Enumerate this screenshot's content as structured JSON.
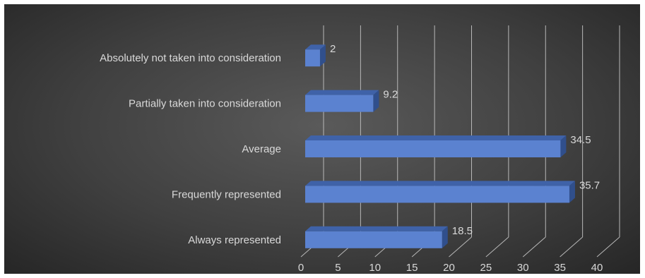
{
  "chart_data": {
    "type": "bar",
    "orientation": "horizontal",
    "style": "3d-clustered-bar",
    "categories": [
      "Absolutely not taken into consideration",
      "Partially taken into consideration",
      "Average",
      "Frequently represented",
      "Always represented"
    ],
    "values": [
      2,
      9.2,
      34.5,
      35.7,
      18.5
    ],
    "data_labels": [
      "2",
      "9.2",
      "34.5",
      "35.7",
      "18.5"
    ],
    "xlim": [
      0,
      40
    ],
    "x_ticks": [
      0,
      5,
      10,
      15,
      20,
      25,
      30,
      35,
      40
    ],
    "grid": true,
    "legend": "none",
    "title": "",
    "xlabel": "",
    "ylabel": "",
    "colors": {
      "bar_front": "#5b82d0",
      "bar_top": "#3f62a8",
      "bar_side": "#304f8c",
      "grid": "#b8b8b8",
      "text": "#d9d9d9"
    }
  }
}
